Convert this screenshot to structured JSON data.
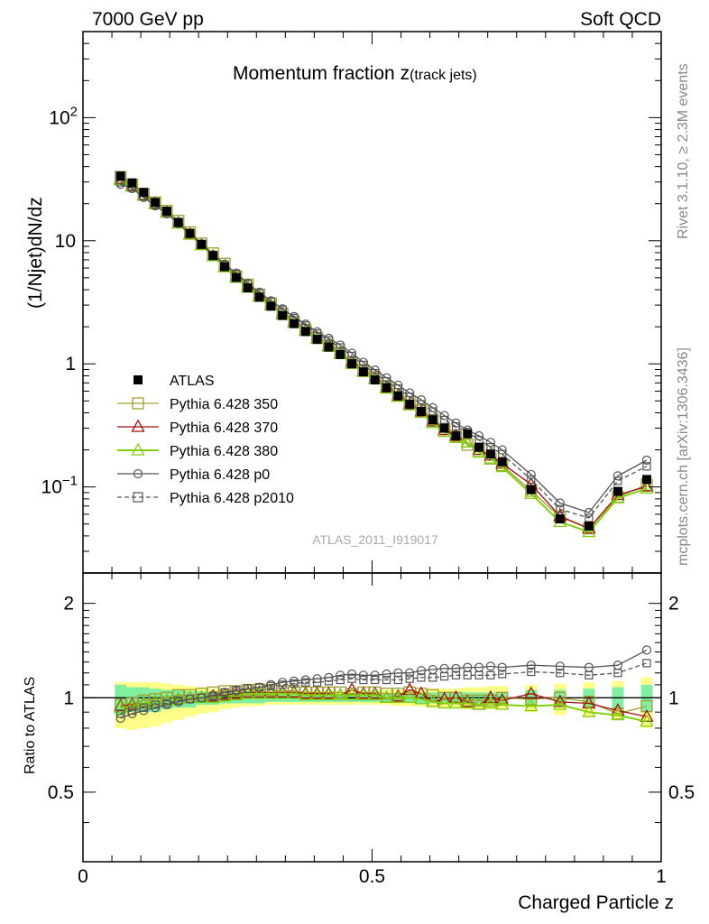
{
  "header": {
    "left": "7000 GeV pp",
    "right": "Soft QCD"
  },
  "side_labels": {
    "rivet": "Rivet 3.1.10, ≥ 2.3M events",
    "mcplots": "mcplots.cern.ch [arXiv:1306.3436]"
  },
  "watermark": "ATLAS_2011_I919017",
  "colors": {
    "atlas": "#000000",
    "p350": "#a0a030",
    "p370": "#a01010",
    "p380": "#80d010",
    "p0": "#555555",
    "p2010": "#555555",
    "band_inner": "#80f0a0",
    "band_outer": "#ffff88"
  },
  "chart_data": [
    {
      "type": "scatter",
      "title": "Momentum fraction z",
      "title_sub": "(track jets)",
      "ylabel": "(1/Njet)dN/dz",
      "yscale": "log",
      "ylim": [
        0.02,
        500
      ],
      "xlim": [
        0,
        1
      ],
      "ytick_labels": [
        "10^-1",
        "1",
        "10",
        "10^2"
      ],
      "legend_position": "lower-left",
      "x": [
        0.065,
        0.085,
        0.105,
        0.125,
        0.145,
        0.165,
        0.185,
        0.205,
        0.225,
        0.245,
        0.265,
        0.285,
        0.305,
        0.325,
        0.345,
        0.365,
        0.385,
        0.405,
        0.425,
        0.445,
        0.465,
        0.485,
        0.505,
        0.525,
        0.545,
        0.565,
        0.585,
        0.605,
        0.625,
        0.645,
        0.665,
        0.685,
        0.705,
        0.725,
        0.775,
        0.825,
        0.875,
        0.925,
        0.975
      ],
      "series": [
        {
          "name": "ATLAS",
          "key": "atlas",
          "marker": "square-filled",
          "values": [
            33.5,
            29.5,
            24.7,
            20.5,
            17.4,
            14.1,
            11.5,
            9.35,
            7.57,
            6.15,
            5.03,
            4.14,
            3.48,
            2.94,
            2.47,
            2.12,
            1.83,
            1.58,
            1.37,
            1.19,
            1.0,
            0.86,
            0.74,
            0.64,
            0.55,
            0.47,
            0.41,
            0.35,
            0.3,
            0.26,
            0.27,
            0.21,
            0.185,
            0.16,
            0.095,
            0.055,
            0.048,
            0.092,
            0.115
          ]
        },
        {
          "name": "Pythia 6.428 350",
          "key": "p350",
          "marker": "square-open",
          "line": "solid",
          "values": [
            33.0,
            28.5,
            24.0,
            20.5,
            17.5,
            14.5,
            11.7,
            9.5,
            7.9,
            6.5,
            5.1,
            4.4,
            3.65,
            3.1,
            2.55,
            2.2,
            1.89,
            1.62,
            1.4,
            1.23,
            1.02,
            0.89,
            0.78,
            0.66,
            0.57,
            0.49,
            0.42,
            0.35,
            0.295,
            0.26,
            0.22,
            0.195,
            0.17,
            0.15,
            0.093,
            0.057,
            0.046,
            0.083,
            0.104
          ]
        },
        {
          "name": "Pythia 6.428 370",
          "key": "p370",
          "marker": "triangle-open",
          "line": "solid",
          "values": [
            31.5,
            28.0,
            23.5,
            20.0,
            17.0,
            13.9,
            11.3,
            9.25,
            7.5,
            6.15,
            5.05,
            4.2,
            3.55,
            3.0,
            2.55,
            2.18,
            1.88,
            1.61,
            1.4,
            1.21,
            1.03,
            0.87,
            0.76,
            0.64,
            0.55,
            0.47,
            0.41,
            0.34,
            0.29,
            0.26,
            0.23,
            0.2,
            0.18,
            0.155,
            0.105,
            0.058,
            0.046,
            0.086,
            0.101
          ]
        },
        {
          "name": "Pythia 6.428 380",
          "key": "p380",
          "marker": "triangle-open",
          "line": "solid",
          "values": [
            31.0,
            27.5,
            23.2,
            19.8,
            16.9,
            13.8,
            11.2,
            9.2,
            7.5,
            6.1,
            5.0,
            4.15,
            3.5,
            2.98,
            2.52,
            2.15,
            1.86,
            1.6,
            1.38,
            1.2,
            1.0,
            0.86,
            0.75,
            0.63,
            0.54,
            0.46,
            0.4,
            0.33,
            0.28,
            0.25,
            0.23,
            0.19,
            0.17,
            0.145,
            0.088,
            0.052,
            0.043,
            0.081,
            0.097
          ]
        },
        {
          "name": "Pythia 6.428 p0",
          "key": "p0",
          "marker": "circle-open",
          "line": "solid",
          "values": [
            28.8,
            26.5,
            22.5,
            19.2,
            16.6,
            13.8,
            11.4,
            9.4,
            7.7,
            6.45,
            5.45,
            4.5,
            3.82,
            3.25,
            2.8,
            2.42,
            2.1,
            1.82,
            1.61,
            1.42,
            1.22,
            1.03,
            0.89,
            0.77,
            0.67,
            0.58,
            0.51,
            0.44,
            0.38,
            0.33,
            0.29,
            0.26,
            0.23,
            0.2,
            0.126,
            0.074,
            0.062,
            0.123,
            0.165
          ]
        },
        {
          "name": "Pythia 6.428 p2010",
          "key": "p2010",
          "marker": "square-open-small",
          "line": "dashed",
          "values": [
            29.8,
            27.0,
            23.0,
            19.6,
            16.8,
            13.9,
            11.4,
            9.35,
            7.65,
            6.4,
            5.4,
            4.45,
            3.76,
            3.2,
            2.75,
            2.36,
            2.05,
            1.76,
            1.55,
            1.36,
            1.16,
            0.98,
            0.84,
            0.72,
            0.63,
            0.54,
            0.47,
            0.41,
            0.35,
            0.31,
            0.28,
            0.24,
            0.21,
            0.185,
            0.115,
            0.066,
            0.056,
            0.112,
            0.147
          ]
        }
      ]
    },
    {
      "type": "scatter",
      "title": "",
      "ylabel": "Ratio to ATLAS",
      "xlabel": "Charged Particle z",
      "ylim": [
        0.3,
        2.5
      ],
      "yscale": "log",
      "xlim": [
        0,
        1
      ],
      "ytick_labels": [
        "0.5",
        "1",
        "2"
      ],
      "xtick_labels": [
        "0",
        "0.5",
        "1"
      ],
      "x": [
        0.065,
        0.085,
        0.105,
        0.125,
        0.145,
        0.165,
        0.185,
        0.205,
        0.225,
        0.245,
        0.265,
        0.285,
        0.305,
        0.325,
        0.345,
        0.365,
        0.385,
        0.405,
        0.425,
        0.445,
        0.465,
        0.485,
        0.505,
        0.525,
        0.545,
        0.565,
        0.585,
        0.605,
        0.625,
        0.645,
        0.665,
        0.685,
        0.705,
        0.725,
        0.775,
        0.825,
        0.875,
        0.925,
        0.975
      ],
      "band_inner": {
        "low": [
          0.88,
          0.9,
          0.9,
          0.9,
          0.92,
          0.93,
          0.93,
          0.95,
          0.95,
          0.96,
          0.96,
          0.96,
          0.96,
          0.97,
          0.97,
          0.97,
          0.97,
          0.97,
          0.97,
          0.97,
          0.97,
          0.97,
          0.97,
          0.97,
          0.97,
          0.97,
          0.96,
          0.96,
          0.96,
          0.96,
          0.96,
          0.96,
          0.96,
          0.96,
          0.94,
          0.94,
          0.93,
          0.92,
          0.9
        ],
        "high": [
          1.1,
          1.08,
          1.08,
          1.07,
          1.06,
          1.06,
          1.05,
          1.05,
          1.04,
          1.04,
          1.04,
          1.04,
          1.04,
          1.03,
          1.03,
          1.03,
          1.03,
          1.03,
          1.03,
          1.03,
          1.03,
          1.03,
          1.03,
          1.03,
          1.03,
          1.03,
          1.04,
          1.04,
          1.04,
          1.04,
          1.04,
          1.04,
          1.04,
          1.04,
          1.06,
          1.06,
          1.07,
          1.08,
          1.1
        ]
      },
      "band_outer": {
        "low": [
          0.8,
          0.79,
          0.8,
          0.81,
          0.83,
          0.85,
          0.87,
          0.89,
          0.9,
          0.92,
          0.93,
          0.94,
          0.94,
          0.95,
          0.95,
          0.95,
          0.95,
          0.95,
          0.95,
          0.95,
          0.95,
          0.95,
          0.95,
          0.95,
          0.94,
          0.94,
          0.94,
          0.93,
          0.93,
          0.93,
          0.92,
          0.92,
          0.92,
          0.92,
          0.9,
          0.88,
          0.87,
          0.85,
          0.8
        ],
        "high": [
          1.12,
          1.12,
          1.12,
          1.12,
          1.11,
          1.1,
          1.09,
          1.08,
          1.07,
          1.06,
          1.06,
          1.06,
          1.05,
          1.05,
          1.05,
          1.05,
          1.05,
          1.05,
          1.05,
          1.05,
          1.05,
          1.05,
          1.05,
          1.06,
          1.06,
          1.06,
          1.06,
          1.07,
          1.07,
          1.07,
          1.08,
          1.08,
          1.09,
          1.09,
          1.1,
          1.11,
          1.12,
          1.13,
          1.16
        ]
      },
      "series": [
        {
          "name": "Pythia 6.428 350",
          "key": "p350",
          "marker": "square-open",
          "line": "solid",
          "values": [
            0.95,
            0.96,
            0.98,
            0.99,
            1.0,
            1.02,
            1.02,
            1.03,
            1.04,
            1.05,
            1.05,
            1.06,
            1.06,
            1.06,
            1.05,
            1.05,
            1.04,
            1.04,
            1.04,
            1.04,
            1.03,
            1.04,
            1.04,
            1.03,
            1.03,
            1.04,
            1.03,
            1.02,
            1.0,
            1.0,
            0.98,
            0.98,
            0.98,
            1.0,
            0.99,
            1.0,
            0.97,
            0.89,
            0.94
          ]
        },
        {
          "name": "Pythia 6.428 370",
          "key": "p370",
          "marker": "triangle-open",
          "line": "solid",
          "values": [
            0.94,
            0.95,
            0.96,
            0.97,
            0.98,
            0.99,
            1.0,
            1.0,
            1.01,
            1.02,
            1.03,
            1.04,
            1.04,
            1.04,
            1.04,
            1.04,
            1.03,
            1.03,
            1.03,
            1.02,
            1.06,
            1.03,
            1.03,
            1.0,
            1.01,
            1.06,
            1.03,
            0.97,
            0.99,
            1.0,
            0.97,
            0.95,
            1.0,
            0.98,
            1.03,
            0.97,
            0.96,
            0.91,
            0.87
          ]
        },
        {
          "name": "Pythia 6.428 380",
          "key": "p380",
          "marker": "triangle-open",
          "line": "solid",
          "values": [
            0.93,
            0.94,
            0.96,
            0.97,
            0.98,
            0.99,
            1.0,
            1.0,
            1.0,
            1.01,
            1.02,
            1.03,
            1.03,
            1.03,
            1.03,
            1.03,
            1.02,
            1.02,
            1.02,
            1.02,
            1.02,
            1.02,
            1.02,
            1.0,
            1.0,
            1.0,
            0.99,
            0.97,
            0.96,
            0.96,
            0.96,
            0.95,
            0.96,
            0.95,
            0.94,
            0.95,
            0.9,
            0.88,
            0.84
          ]
        },
        {
          "name": "Pythia 6.428 p0",
          "key": "p0",
          "marker": "circle-open",
          "line": "solid",
          "values": [
            0.86,
            0.89,
            0.91,
            0.93,
            0.95,
            0.97,
            0.99,
            1.0,
            1.02,
            1.04,
            1.05,
            1.07,
            1.08,
            1.1,
            1.12,
            1.13,
            1.14,
            1.15,
            1.16,
            1.18,
            1.19,
            1.18,
            1.18,
            1.19,
            1.2,
            1.2,
            1.22,
            1.23,
            1.24,
            1.24,
            1.25,
            1.25,
            1.26,
            1.25,
            1.27,
            1.26,
            1.25,
            1.27,
            1.42
          ]
        },
        {
          "name": "Pythia 6.428 p2010",
          "key": "p2010",
          "marker": "square-open-small",
          "line": "dashed",
          "values": [
            0.89,
            0.91,
            0.93,
            0.95,
            0.96,
            0.98,
            0.99,
            1.0,
            1.01,
            1.04,
            1.06,
            1.07,
            1.08,
            1.09,
            1.1,
            1.11,
            1.12,
            1.12,
            1.13,
            1.14,
            1.15,
            1.14,
            1.14,
            1.14,
            1.14,
            1.15,
            1.16,
            1.16,
            1.17,
            1.18,
            1.18,
            1.18,
            1.18,
            1.19,
            1.21,
            1.2,
            1.18,
            1.2,
            1.29
          ]
        }
      ]
    }
  ]
}
